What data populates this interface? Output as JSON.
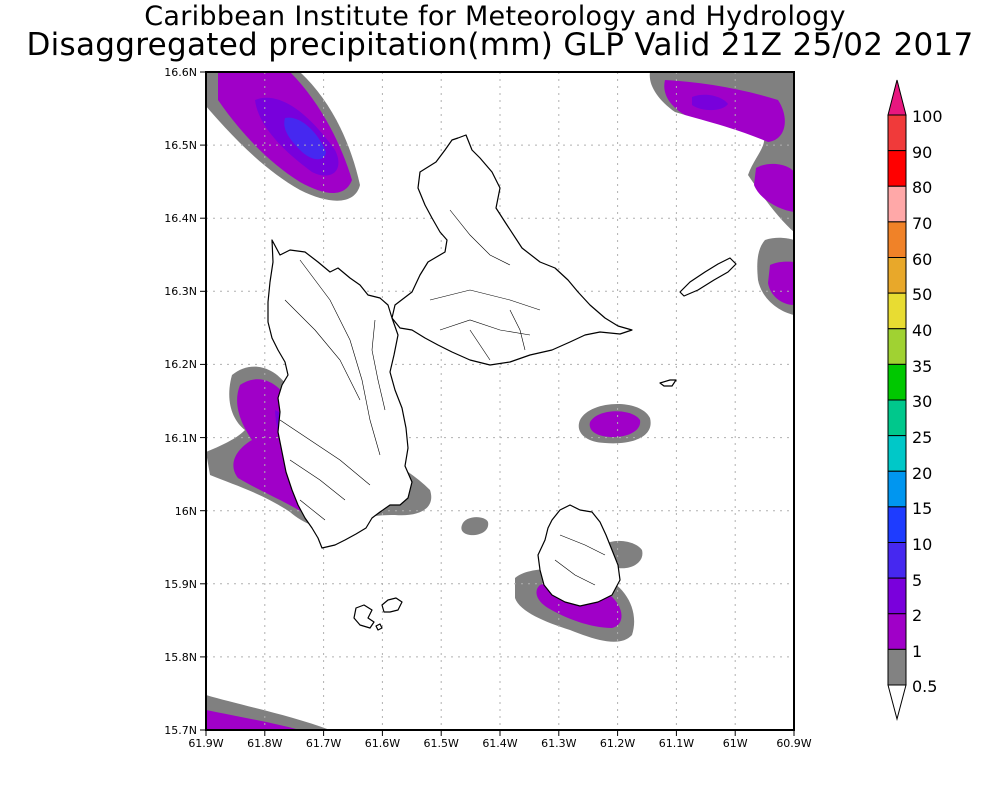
{
  "title": {
    "line1": "Caribbean Institute for Meteorology and Hydrology",
    "line2": "Disaggregated precipitation(mm) GLP Valid 21Z 25/02 2017"
  },
  "axes": {
    "lat_ticks": [
      "16.6N",
      "16.5N",
      "16.4N",
      "16.3N",
      "16.2N",
      "16.1N",
      "16N",
      "15.9N",
      "15.8N",
      "15.7N"
    ],
    "lon_ticks": [
      "61.9W",
      "61.8W",
      "61.7W",
      "61.6W",
      "61.5W",
      "61.4W",
      "61.3W",
      "61.2W",
      "61.1W",
      "61W",
      "60.9W"
    ]
  },
  "colorbar": {
    "levels": [
      "100",
      "90",
      "80",
      "70",
      "60",
      "50",
      "40",
      "35",
      "30",
      "25",
      "20",
      "15",
      "10",
      "5",
      "2",
      "1",
      "0.5"
    ],
    "colors": [
      "#e8177f",
      "#f03a3a",
      "#ff0000",
      "#ffa8a8",
      "#f08228",
      "#e8a82a",
      "#e8dc32",
      "#a0d232",
      "#00c800",
      "#00c88c",
      "#00c8c8",
      "#0096f0",
      "#1e3cff",
      "#4628f0",
      "#7a00dc",
      "#a000c8",
      "#828282"
    ]
  },
  "shading": {
    "gray": "#808080",
    "purple": "#a000c8",
    "violet": "#7800dc",
    "blue": "#4628f0"
  }
}
